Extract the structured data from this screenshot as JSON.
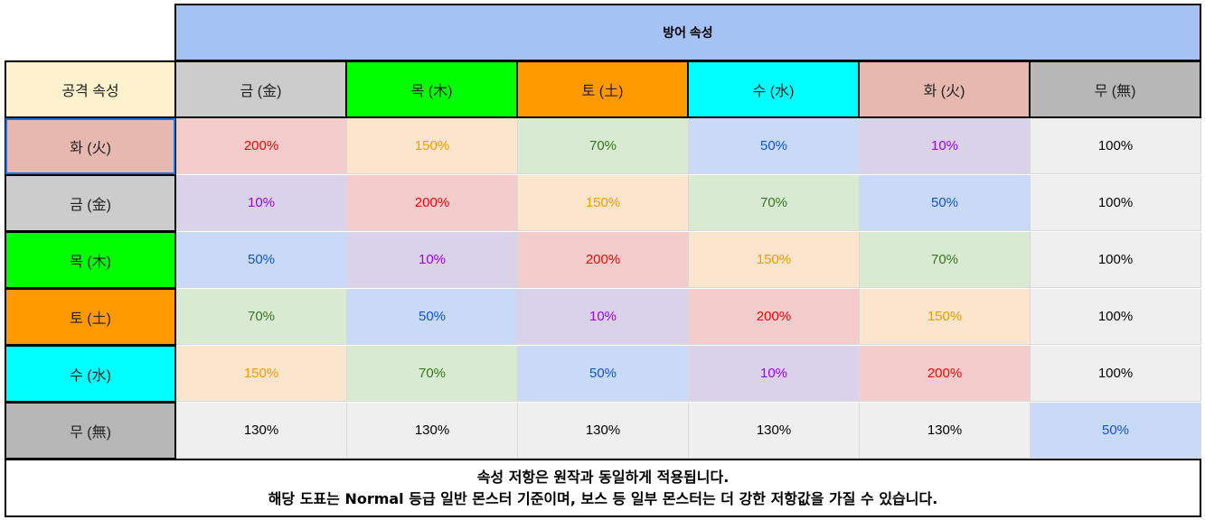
{
  "header": {
    "defense_label": "방어 속성",
    "attack_label": "공격 속성"
  },
  "columns": [
    {
      "label": "금 (金)",
      "bg": "#cccccc"
    },
    {
      "label": "목 (木)",
      "bg": "#00ff00"
    },
    {
      "label": "토 (土)",
      "bg": "#ff9900"
    },
    {
      "label": "수 (水)",
      "bg": "#00ffff"
    },
    {
      "label": "화 (火)",
      "bg": "#e6b8af"
    },
    {
      "label": "무 (無)",
      "bg": "#b7b7b7"
    }
  ],
  "rows": [
    {
      "label": "화 (火)",
      "bg": "#e6b8af",
      "values": [
        "200%",
        "150%",
        "70%",
        "50%",
        "10%",
        "100%"
      ]
    },
    {
      "label": "금 (金)",
      "bg": "#cccccc",
      "values": [
        "10%",
        "200%",
        "150%",
        "70%",
        "50%",
        "100%"
      ]
    },
    {
      "label": "목 (木)",
      "bg": "#00ff00",
      "values": [
        "50%",
        "10%",
        "200%",
        "150%",
        "70%",
        "100%"
      ]
    },
    {
      "label": "토 (土)",
      "bg": "#ff9900",
      "values": [
        "70%",
        "50%",
        "10%",
        "200%",
        "150%",
        "100%"
      ]
    },
    {
      "label": "수 (水)",
      "bg": "#00ffff",
      "values": [
        "150%",
        "70%",
        "50%",
        "10%",
        "200%",
        "100%"
      ]
    },
    {
      "label": "무 (無)",
      "bg": "#b7b7b7",
      "values": [
        "130%",
        "130%",
        "130%",
        "130%",
        "130%",
        "50%"
      ]
    }
  ],
  "value_styles": {
    "200%": {
      "bg": "#f4cccc",
      "color": "#ff0000"
    },
    "150%": {
      "bg": "#fce5cd",
      "color": "#ff9900"
    },
    "70%": {
      "bg": "#d9ead3",
      "color": "#38761d"
    },
    "50%": {
      "bg": "#c9daf8",
      "color": "#1155cc"
    },
    "10%": {
      "bg": "#d9d2e9",
      "color": "#9900ff"
    },
    "100%": {
      "bg": "#efefef",
      "color": "#000000"
    },
    "130%": {
      "bg": "#efefef",
      "color": "#000000"
    }
  },
  "colors": {
    "defense_header_bg": "#a4c2f4",
    "attack_header_bg": "#fff2cc"
  },
  "footer": {
    "line1": "속성 저항은 원작과 동일하게 적용됩니다.",
    "line2": "해당 도표는 Normal 등급 일반 몬스터 기준이며, 보스 등 일부 몬스터는 더 강한 저항값을 가질 수 있습니다."
  }
}
